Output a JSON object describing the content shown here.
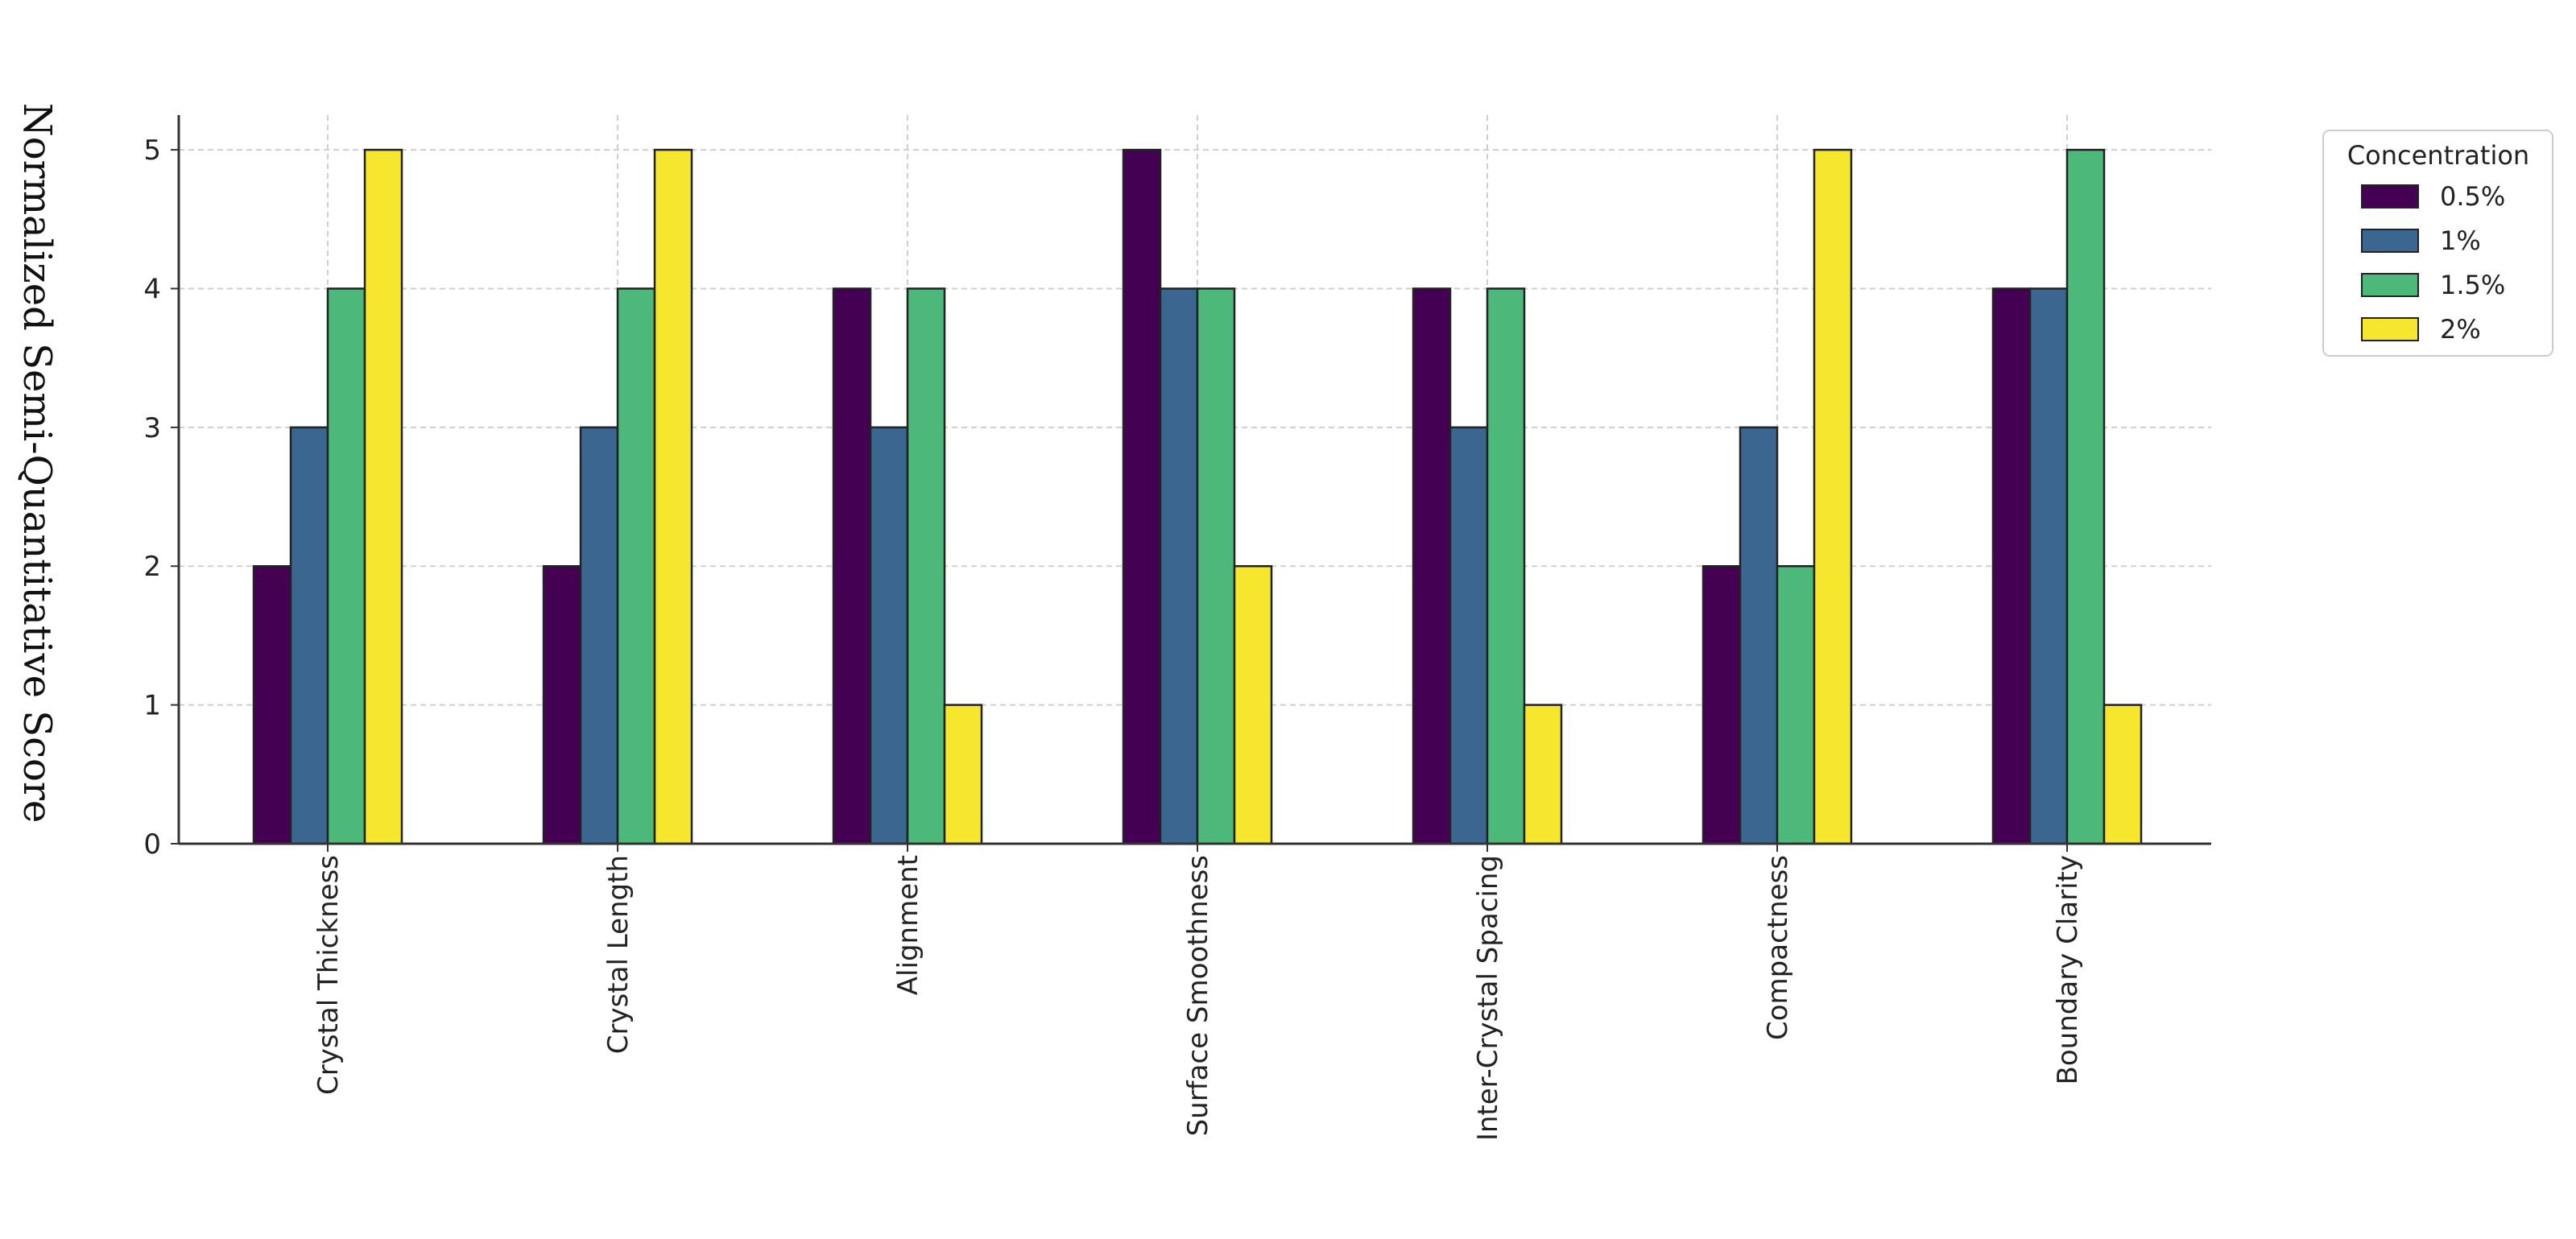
{
  "chart_data": {
    "type": "bar",
    "title": "",
    "xlabel": "",
    "ylabel": "Normalized Semi-Quantitative Score",
    "ylim": [
      0,
      5.25
    ],
    "yticks": [
      0,
      1,
      2,
      3,
      4,
      5
    ],
    "grid": true,
    "legend_title": "Concentration",
    "legend_position": "outside-right-top",
    "categories": [
      "Crystal Thickness",
      "Crystal Length",
      "Alignment",
      "Surface Smoothness",
      "Inter-Crystal Spacing",
      "Compactness",
      "Boundary Clarity"
    ],
    "series": [
      {
        "name": "0.5%",
        "color": "#440154",
        "values": [
          2,
          2,
          4,
          5,
          4,
          2,
          4
        ]
      },
      {
        "name": "1%",
        "color": "#3b6690",
        "values": [
          3,
          3,
          3,
          4,
          3,
          3,
          4
        ]
      },
      {
        "name": "1.5%",
        "color": "#4cb97a",
        "values": [
          4,
          4,
          4,
          4,
          4,
          2,
          5
        ]
      },
      {
        "name": "2%",
        "color": "#f6e72e",
        "values": [
          5,
          5,
          1,
          2,
          1,
          5,
          1
        ]
      }
    ]
  }
}
